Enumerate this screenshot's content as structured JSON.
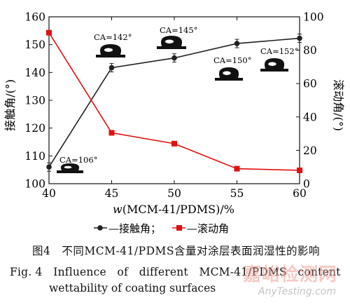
{
  "chart_data": {
    "type": "line",
    "x": [
      40,
      45,
      50,
      55,
      60
    ],
    "xlim": [
      40,
      60
    ],
    "x_ticks": [
      "40",
      "45",
      "50",
      "55",
      "60"
    ],
    "xlabel_prefix": "w",
    "xlabel_rest": "(MCM-41/PDMS)/%",
    "ylabel_left": "接触角/(°)",
    "ylabel_right": "滚动角/(°)",
    "ylim_left": [
      100,
      160
    ],
    "ylim_right": [
      0,
      100
    ],
    "y_ticks_left": [
      "100",
      "110",
      "120",
      "130",
      "140",
      "150",
      "160"
    ],
    "y_ticks_right": [
      "0",
      "20",
      "40",
      "60",
      "80",
      "100"
    ],
    "series": [
      {
        "name": "接触角",
        "axis": "left",
        "color": "#222222",
        "marker": "circle",
        "values": [
          106,
          141.7,
          145.2,
          150.4,
          152.3
        ]
      },
      {
        "name": "滚动角",
        "axis": "right",
        "color": "#e01010",
        "marker": "square",
        "values": [
          90.5,
          30.5,
          24,
          9,
          8
        ]
      }
    ],
    "legend_items": [
      "—接触角；",
      "—滚动角"
    ],
    "legend_position": "bottom-center",
    "annotations": [
      "CA=106°",
      "CA=142°",
      "CA=145°",
      "CA=150°",
      "CA=152°"
    ]
  },
  "caption": {
    "cn": "图4　不同MCM-41/PDMS含量对涂层表面润湿性的影响",
    "en_line1": "Fig. 4　Influence　of　different　MCM-41/PDMS　content　on",
    "en_line2": "wettability of coating surfaces"
  },
  "watermark": {
    "cn": "嘉峪检测网",
    "en": "AnyTesting.com"
  }
}
